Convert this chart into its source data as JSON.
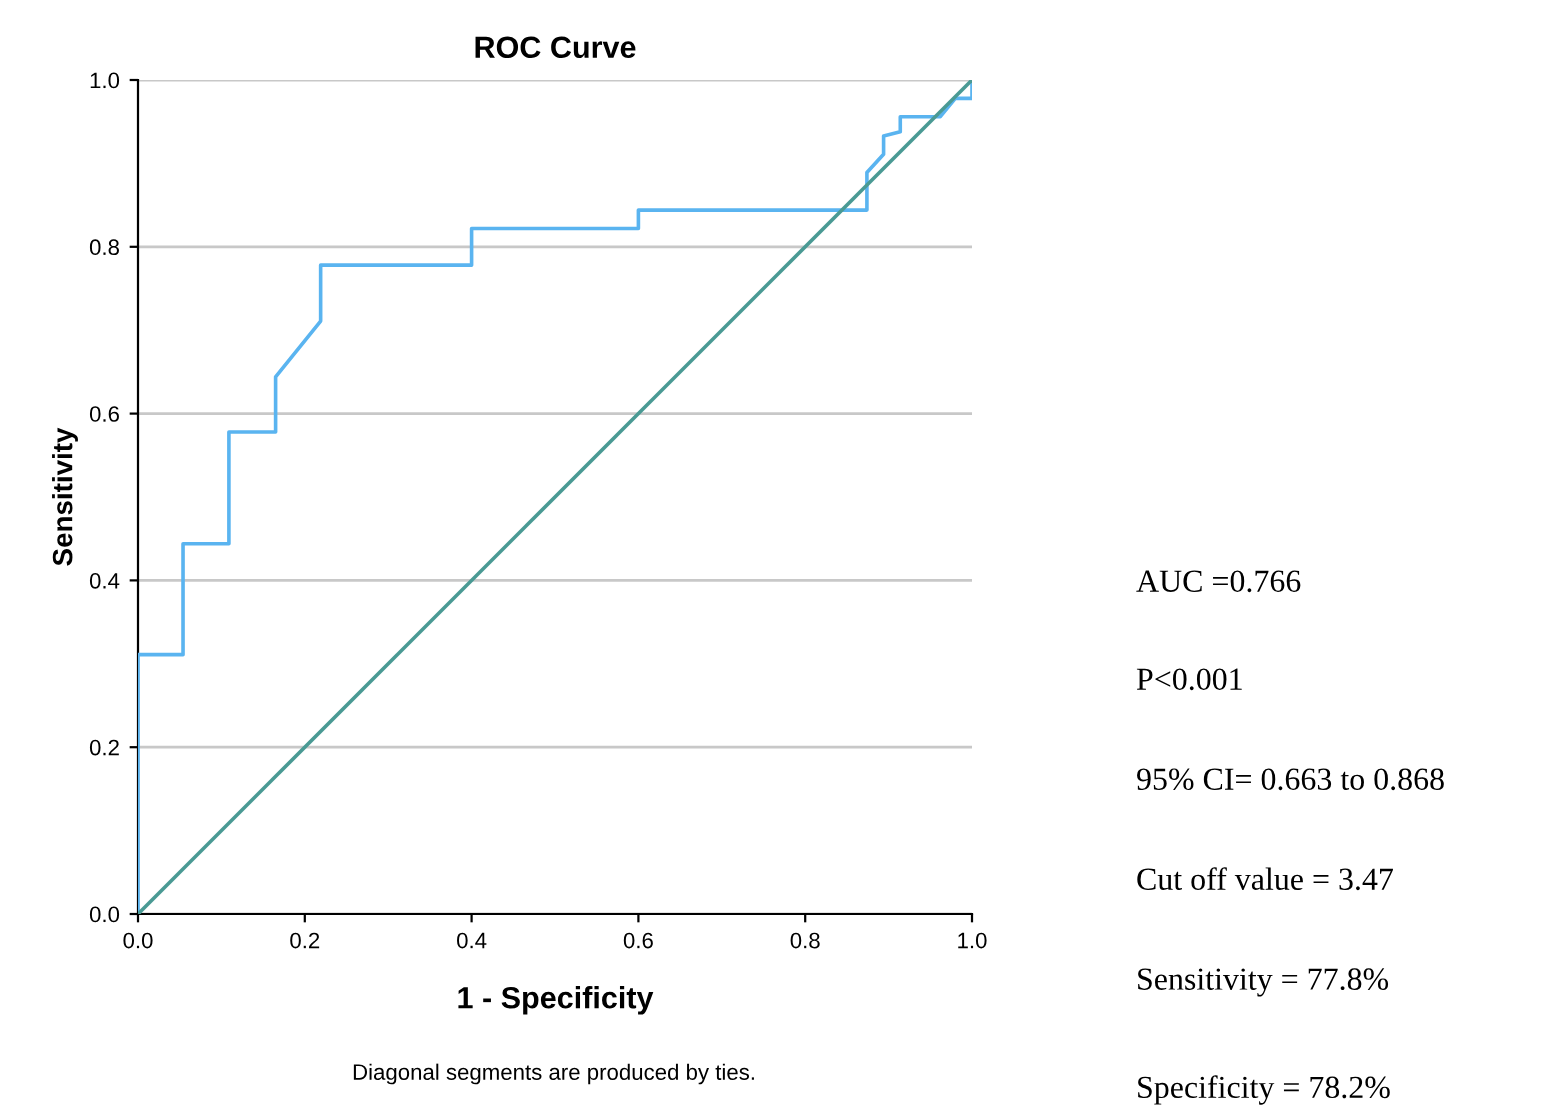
{
  "chart_data": {
    "type": "line",
    "title": "ROC Curve",
    "xlabel": "1 - Specificity",
    "ylabel": "Sensitivity",
    "xlim": [
      0,
      1
    ],
    "ylim": [
      0,
      1
    ],
    "xticks": [
      {
        "value": 0,
        "label": "0.0"
      },
      {
        "value": 0.2,
        "label": "0.2"
      },
      {
        "value": 0.4,
        "label": "0.4"
      },
      {
        "value": 0.6,
        "label": "0.6"
      },
      {
        "value": 0.8,
        "label": "0.8"
      },
      {
        "value": 1,
        "label": "1.0"
      }
    ],
    "yticks": [
      {
        "value": 0,
        "label": "0.0"
      },
      {
        "value": 0.2,
        "label": "0.2"
      },
      {
        "value": 0.4,
        "label": "0.4"
      },
      {
        "value": 0.6,
        "label": "0.6"
      },
      {
        "value": 0.8,
        "label": "0.8"
      },
      {
        "value": 1,
        "label": "1.0"
      }
    ],
    "grid": "y",
    "marker": "none",
    "line_style": "solid",
    "series": [
      {
        "color": "#5ab4f0",
        "x": [
          0,
          0,
          0.054,
          0.054,
          0.109,
          0.109,
          0.165,
          0.165,
          0.219,
          0.219,
          0.4,
          0.4,
          0.6,
          0.6,
          0.874,
          0.874,
          0.894,
          0.894,
          0.914,
          0.914,
          0.962,
          0.98,
          1.0,
          1.0
        ],
        "values": [
          0,
          0.311,
          0.311,
          0.444,
          0.444,
          0.578,
          0.578,
          0.644,
          0.711,
          0.778,
          0.778,
          0.822,
          0.822,
          0.844,
          0.844,
          0.889,
          0.911,
          0.933,
          0.938,
          0.956,
          0.956,
          0.978,
          0.978,
          1.0
        ]
      },
      {
        "color": "#4a9a94",
        "x": [
          0,
          1
        ],
        "values": [
          0,
          1
        ]
      }
    ],
    "annotations": [
      "AUC =0.766",
      "P<0.001",
      "95% CI= 0.663 to 0.868",
      "Cut off value = 3.47",
      "Sensitivity = 77.8%",
      "Specificity = 78.2%",
      "Diagonal segments are produced by ties."
    ]
  }
}
